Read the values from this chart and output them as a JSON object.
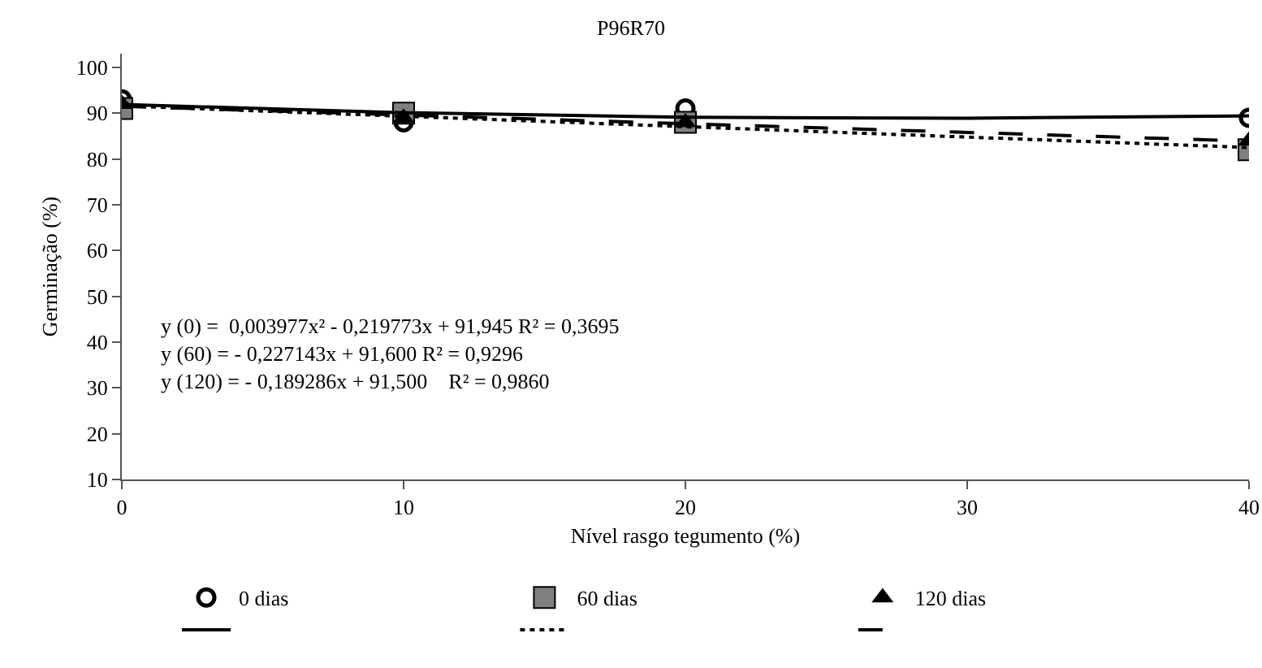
{
  "chart_data": {
    "type": "scatter",
    "title": "P96R70",
    "xlabel": "Nível rasgo tegumento (%)",
    "ylabel": "Germinação (%)",
    "x": [
      0,
      10,
      20,
      40
    ],
    "series": [
      {
        "name": "0 dias",
        "color": "#000000",
        "marker": "circle",
        "values": [
          93,
          88,
          91,
          89
        ]
      },
      {
        "name": "60 dias",
        "color": "#808080",
        "marker": "square",
        "values": [
          91,
          90,
          88,
          82
        ]
      },
      {
        "name": "120 dias",
        "color": "#000000",
        "marker": "triangle",
        "values": [
          92,
          89,
          88,
          84
        ]
      },
      {
        "type": "line",
        "color": "#000000",
        "line_style": "solid",
        "x": [
          0,
          10,
          20,
          30,
          40
        ],
        "values": [
          91.9,
          90.1,
          89.1,
          88.9,
          89.4
        ]
      },
      {
        "type": "line",
        "color": "#000000",
        "line_style": "dotted",
        "x": [
          0,
          40
        ],
        "values": [
          91.6,
          82.5
        ]
      },
      {
        "type": "line",
        "color": "#000000",
        "line_style": "dashed",
        "x": [
          0,
          40
        ],
        "values": [
          91.5,
          83.9
        ]
      }
    ],
    "annotations": [
      "y (0) =  0,003977x² - 0,219773x + 91,945 R² = 0,3695",
      "y (60) = - 0,227143x + 91,600 R² = 0,9296",
      "y (120) = - 0,189286x + 91,500    R² = 0,9860"
    ],
    "xlim": [
      0,
      40
    ],
    "xticks": [
      0,
      10,
      20,
      30,
      40
    ],
    "ylim": [
      10,
      103
    ],
    "yticks": [
      10,
      20,
      30,
      40,
      50,
      60,
      70,
      80,
      90,
      100
    ],
    "grid": false,
    "legend": "bottom"
  }
}
